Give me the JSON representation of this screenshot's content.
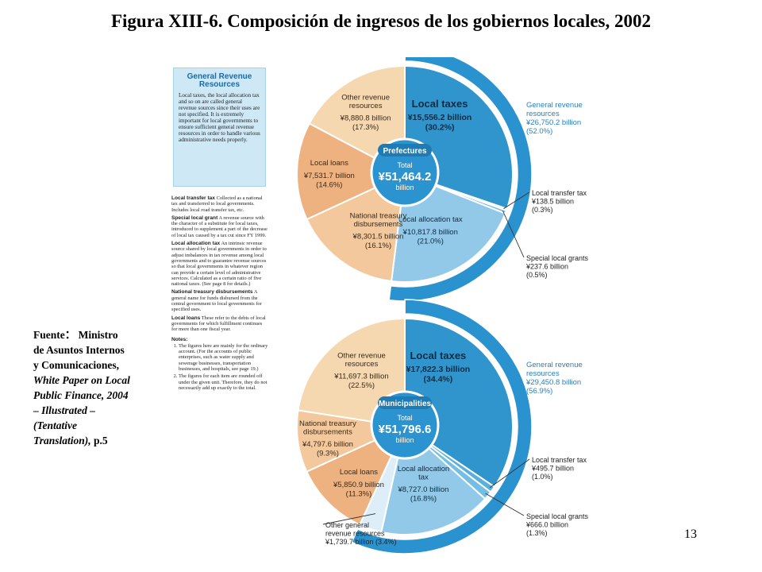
{
  "title": "Figura XIII-6. Composición de ingresos de los gobiernos locales, 2002",
  "source": {
    "label": "Fuente",
    "colon": "：",
    "publisher": "Ministro de Asuntos Internos y Comunicaciones,",
    "publication": "White Paper on Local Public Finance, 2004 – Illustrated – (Tentative Translation),",
    "page": "p.5"
  },
  "page_number": "13",
  "general_revenue_box": {
    "title": "General Revenue Resources",
    "text": "Local taxes, the local allocation tax and so on are called general revenue sources since their uses are not specified. It is extremely important for local governments to ensure sufficient general revenue resources in order to handle various administrative needs properly."
  },
  "glossary": [
    {
      "term": "Local transfer tax",
      "text": "Collected as a national tax and transferred to local governments. Includes local road transfer tax, etc."
    },
    {
      "term": "Special local grant",
      "text": "A revenue source with the character of a substitute for local taxes, introduced to supplement a part of the decrease of local tax caused by a tax cut since FY 1999."
    },
    {
      "term": "Local allocation tax",
      "text": "An intrinsic revenue source shared by local governments in order to adjust imbalances in tax revenue among local governments and to guarantee revenue sources so that local governments in whatever region can provide a certain level of administrative services. Calculated as a certain ratio of five national taxes. (See page 8 for details.)"
    },
    {
      "term": "National treasury disbursements",
      "text": "A general name for funds disbursed from the central government to local governments for specified uses."
    },
    {
      "term": "Local loans",
      "text": "These refer to the debts of local governments for which fulfillment continues for more than one fiscal year."
    }
  ],
  "notes": {
    "title": "Notes:",
    "items": [
      "The figures here are mainly for the ordinary account. (For the accounts of public enterprises, such as water supply and sewerage businesses, transportation businesses, and hospitals, see page 19.)",
      "The figures for each item are rounded off under the given unit. Therefore, they do not necessarily add up exactly to the total."
    ]
  },
  "colors": {
    "local_taxes": "#2f95cc",
    "local_allocation_tax": "#92c9e8",
    "local_transfer_tax": "#5aafdc",
    "special_local_grants": "#74bde3",
    "national_treasury": "#f3c89c",
    "local_loans": "#eeb281",
    "other_revenue": "#f6d8b0",
    "other_general": "#ddeef8",
    "outer_ring": "#2a93cf",
    "center": "#2b93cf",
    "callout_text": "#2a7fc0"
  },
  "chart_data": [
    {
      "type": "pie",
      "name": "Prefectures",
      "total_label": "Total",
      "total_value": "¥51,464.2",
      "total_unit": "billion",
      "general_revenue": {
        "label_line1": "General revenue",
        "label_line2": "resources",
        "value": "¥26,750.2 billion",
        "percent": "(52.0%)",
        "share": 52.0
      },
      "slices": [
        {
          "key": "local_taxes",
          "name_lines": [
            "Local taxes"
          ],
          "value_text": "¥15,556.2 billion",
          "percent_text": "(30.2%)",
          "value": 15556.2,
          "percent": 30.2,
          "general": true
        },
        {
          "key": "local_transfer_tax",
          "name_lines": [
            "Local transfer tax"
          ],
          "value_text": "¥138.5 billion",
          "percent_text": "(0.3%)",
          "value": 138.5,
          "percent": 0.3,
          "general": true,
          "external": true
        },
        {
          "key": "special_local_grants",
          "name_lines": [
            "Special local grants"
          ],
          "value_text": "¥237.6 billion",
          "percent_text": "(0.5%)",
          "value": 237.6,
          "percent": 0.5,
          "general": true,
          "external": true
        },
        {
          "key": "local_allocation_tax",
          "name_lines": [
            "Local allocation tax"
          ],
          "value_text": "¥10,817.8 billion",
          "percent_text": "(21.0%)",
          "value": 10817.8,
          "percent": 21.0,
          "general": true
        },
        {
          "key": "national_treasury",
          "name_lines": [
            "National treasury",
            "disbursements"
          ],
          "value_text": "¥8,301.5 billion",
          "percent_text": "(16.1%)",
          "value": 8301.5,
          "percent": 16.1,
          "general": false
        },
        {
          "key": "local_loans",
          "name_lines": [
            "Local loans"
          ],
          "value_text": "¥7,531.7 billion",
          "percent_text": "(14.6%)",
          "value": 7531.7,
          "percent": 14.6,
          "general": false
        },
        {
          "key": "other_revenue",
          "name_lines": [
            "Other revenue",
            "resources"
          ],
          "value_text": "¥8,880.8 billion",
          "percent_text": "(17.3%)",
          "value": 8880.8,
          "percent": 17.3,
          "general": false
        }
      ]
    },
    {
      "type": "pie",
      "name": "Municipalities",
      "total_label": "Total",
      "total_value": "¥51,796.6",
      "total_unit": "billion",
      "general_revenue": {
        "label_line1": "General revenue",
        "label_line2": "resources",
        "value": "¥29,450.8 billion",
        "percent": "(56.9%)",
        "share": 56.9
      },
      "slices": [
        {
          "key": "local_taxes",
          "name_lines": [
            "Local taxes"
          ],
          "value_text": "¥17,822.3 billion",
          "percent_text": "(34.4%)",
          "value": 17822.3,
          "percent": 34.4,
          "general": true
        },
        {
          "key": "local_transfer_tax",
          "name_lines": [
            "Local transfer tax"
          ],
          "value_text": "¥495.7 billion",
          "percent_text": "(1.0%)",
          "value": 495.7,
          "percent": 1.0,
          "general": true,
          "external": true
        },
        {
          "key": "special_local_grants",
          "name_lines": [
            "Special local grants"
          ],
          "value_text": "¥666.0 billion",
          "percent_text": "(1.3%)",
          "value": 666.0,
          "percent": 1.3,
          "general": true,
          "external": true
        },
        {
          "key": "local_allocation_tax",
          "name_lines": [
            "Local allocation",
            "tax"
          ],
          "value_text": "¥8,727.0 billion",
          "percent_text": "(16.8%)",
          "value": 8727.0,
          "percent": 16.8,
          "general": true
        },
        {
          "key": "other_general",
          "name_lines": [
            "Other general",
            "revenue resources"
          ],
          "value_text": "¥1,739.7 billion",
          "percent_text": "(3.4%)",
          "value": 1739.7,
          "percent": 3.4,
          "general": true,
          "external": true,
          "inline_value": true
        },
        {
          "key": "local_loans",
          "name_lines": [
            "Local loans"
          ],
          "value_text": "¥5,850.9 billion",
          "percent_text": "(11.3%)",
          "value": 5850.9,
          "percent": 11.3,
          "general": false
        },
        {
          "key": "national_treasury",
          "name_lines": [
            "National treasury",
            "disbursements"
          ],
          "value_text": "¥4,797.6 billion",
          "percent_text": "(9.3%)",
          "value": 4797.6,
          "percent": 9.3,
          "general": false
        },
        {
          "key": "other_revenue",
          "name_lines": [
            "Other revenue",
            "resources"
          ],
          "value_text": "¥11,697.3 billion",
          "percent_text": "(22.5%)",
          "value": 11697.3,
          "percent": 22.5,
          "general": false
        }
      ]
    }
  ]
}
